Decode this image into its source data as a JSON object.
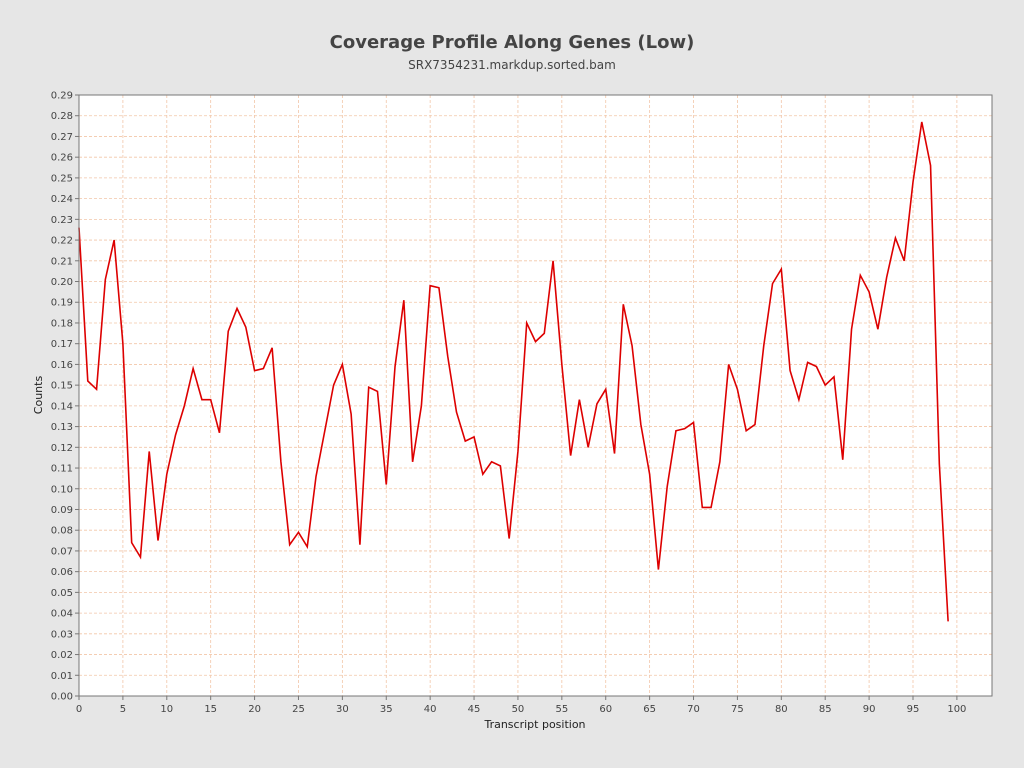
{
  "chart_data": {
    "type": "line",
    "title": "Coverage Profile Along Genes (Low)",
    "subtitle": "SRX7354231.markdup.sorted.bam",
    "xlabel": "Transcript position",
    "ylabel": "Counts",
    "xlim": [
      0,
      104
    ],
    "ylim": [
      0,
      0.29
    ],
    "x_ticks": [
      0,
      5,
      10,
      15,
      20,
      25,
      30,
      35,
      40,
      45,
      50,
      55,
      60,
      65,
      70,
      75,
      80,
      85,
      90,
      95,
      100
    ],
    "y_ticks": [
      0.0,
      0.01,
      0.02,
      0.03,
      0.04,
      0.05,
      0.06,
      0.07,
      0.08,
      0.09,
      0.1,
      0.11,
      0.12,
      0.13,
      0.14,
      0.15,
      0.16,
      0.17,
      0.18,
      0.19,
      0.2,
      0.21,
      0.22,
      0.23,
      0.24,
      0.25,
      0.26,
      0.27,
      0.28,
      0.29
    ],
    "grid": true,
    "legend": false,
    "colors": {
      "line": "#dd0000",
      "grid": "#f2c6a8",
      "plot_bg": "#ffffff",
      "page_bg": "#e6e6e6",
      "axis": "#777777"
    },
    "series": [
      {
        "x": [
          0,
          1,
          2,
          3,
          4,
          5,
          6,
          7,
          8,
          9,
          10,
          11,
          12,
          13,
          14,
          15,
          16,
          17,
          18,
          19,
          20,
          21,
          22,
          23,
          24,
          25,
          26,
          27,
          28,
          29,
          30,
          31,
          32,
          33,
          34,
          35,
          36,
          37,
          38,
          39,
          40,
          41,
          42,
          43,
          44,
          45,
          46,
          47,
          48,
          49,
          50,
          51,
          52,
          53,
          54,
          55,
          56,
          57,
          58,
          59,
          60,
          61,
          62,
          63,
          64,
          65,
          66,
          67,
          68,
          69,
          70,
          71,
          72,
          73,
          74,
          75,
          76,
          77,
          78,
          79,
          80,
          81,
          82,
          83,
          84,
          85,
          86,
          87,
          88,
          89,
          90,
          91,
          92,
          93,
          94,
          95,
          96,
          97,
          98,
          99
        ],
        "y": [
          0.226,
          0.152,
          0.148,
          0.201,
          0.22,
          0.17,
          0.074,
          0.067,
          0.118,
          0.075,
          0.107,
          0.126,
          0.14,
          0.158,
          0.143,
          0.143,
          0.127,
          0.176,
          0.187,
          0.178,
          0.157,
          0.158,
          0.168,
          0.113,
          0.073,
          0.079,
          0.072,
          0.106,
          0.128,
          0.15,
          0.16,
          0.136,
          0.073,
          0.149,
          0.147,
          0.102,
          0.159,
          0.191,
          0.113,
          0.14,
          0.198,
          0.197,
          0.164,
          0.137,
          0.123,
          0.125,
          0.107,
          0.113,
          0.111,
          0.076,
          0.118,
          0.18,
          0.171,
          0.175,
          0.21,
          0.16,
          0.116,
          0.143,
          0.12,
          0.141,
          0.148,
          0.117,
          0.189,
          0.169,
          0.131,
          0.107,
          0.061,
          0.101,
          0.128,
          0.129,
          0.132,
          0.091,
          0.091,
          0.113,
          0.16,
          0.148,
          0.128,
          0.131,
          0.169,
          0.199,
          0.206,
          0.157,
          0.143,
          0.161,
          0.159,
          0.15,
          0.154,
          0.114,
          0.177,
          0.203,
          0.195,
          0.177,
          0.202,
          0.221,
          0.21,
          0.248,
          0.277,
          0.256,
          0.112,
          0.036
        ]
      }
    ]
  }
}
